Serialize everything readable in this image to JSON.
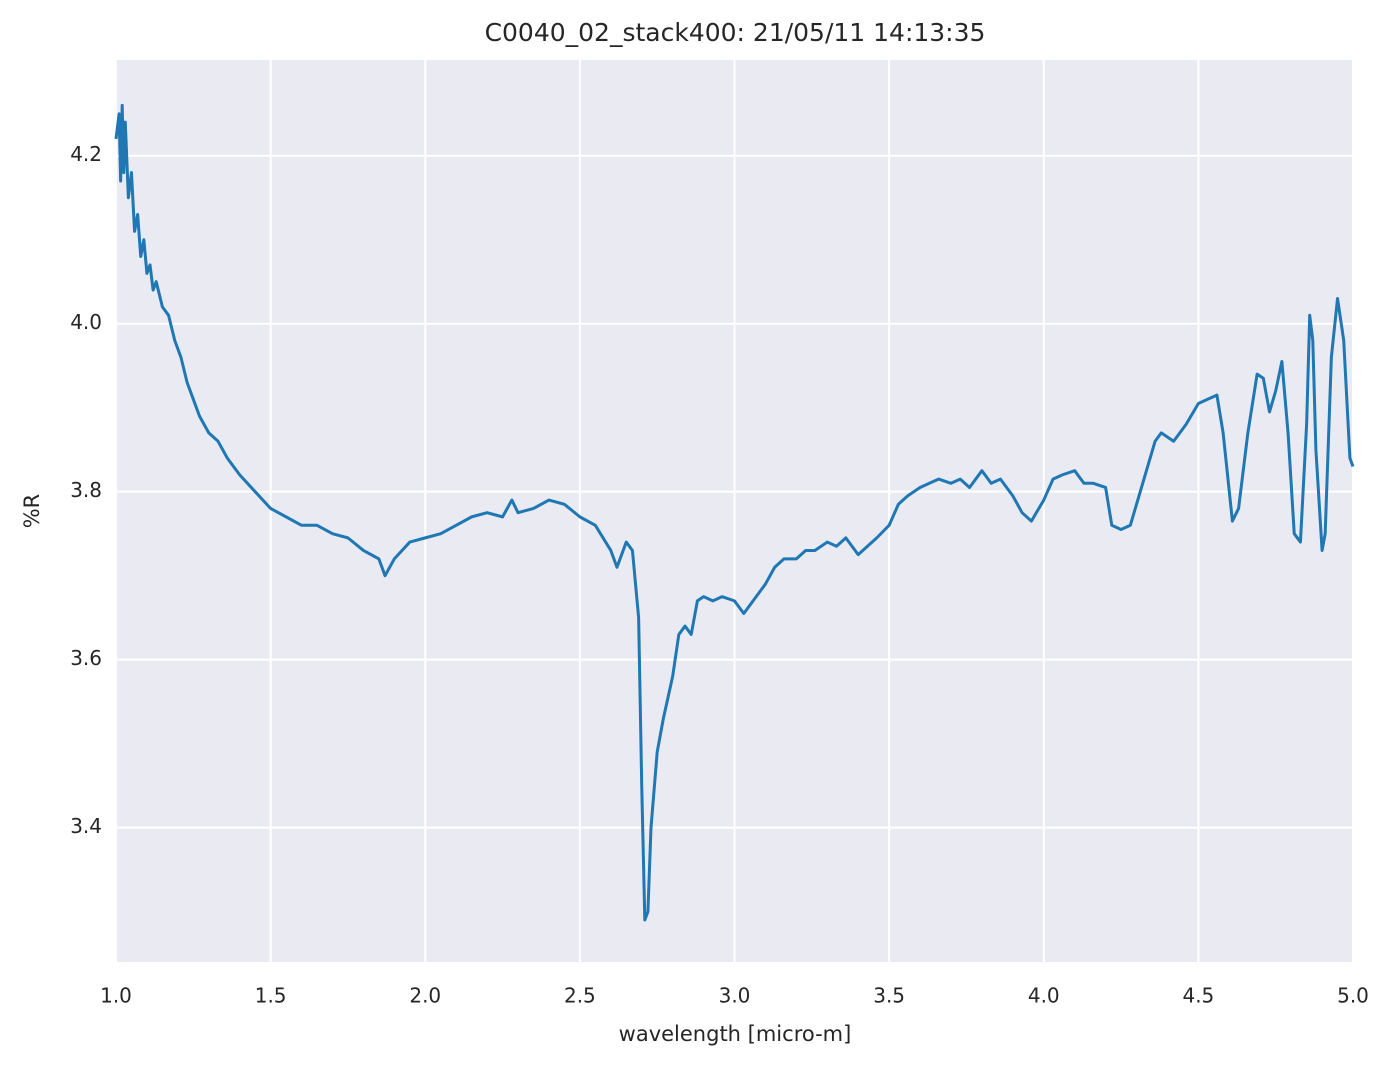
{
  "chart_data": {
    "type": "line",
    "title": "C0040_02_stack400:  21/05/11 14:13:35",
    "x_label": "wavelength [micro-m]",
    "y_label": "%R",
    "color": "#1f77b4",
    "grid": true,
    "xlim": [
      1.0,
      5.0
    ],
    "ylim": [
      3.24,
      4.314
    ],
    "xticks": [
      {
        "value": 1,
        "label": "1.0"
      },
      1.5,
      {
        "value": 2,
        "label": "2.0"
      },
      2.5,
      {
        "value": 3,
        "label": "3.0"
      },
      3.5,
      {
        "value": 4,
        "label": "4.0"
      },
      4.5,
      {
        "value": 5,
        "label": "5.0"
      }
    ],
    "yticks": [
      3.4,
      3.6,
      3.8,
      {
        "value": 4,
        "label": "4.0"
      },
      4.2
    ],
    "x": [
      1.0,
      1.01,
      1.015,
      1.02,
      1.025,
      1.03,
      1.04,
      1.05,
      1.06,
      1.07,
      1.08,
      1.09,
      1.1,
      1.11,
      1.12,
      1.13,
      1.15,
      1.17,
      1.19,
      1.21,
      1.23,
      1.25,
      1.27,
      1.3,
      1.33,
      1.36,
      1.4,
      1.45,
      1.5,
      1.55,
      1.6,
      1.65,
      1.7,
      1.75,
      1.8,
      1.85,
      1.87,
      1.9,
      1.95,
      2.0,
      2.05,
      2.1,
      2.15,
      2.2,
      2.25,
      2.28,
      2.3,
      2.35,
      2.4,
      2.45,
      2.5,
      2.55,
      2.6,
      2.62,
      2.65,
      2.67,
      2.69,
      2.7,
      2.71,
      2.72,
      2.73,
      2.75,
      2.77,
      2.8,
      2.82,
      2.84,
      2.86,
      2.88,
      2.9,
      2.93,
      2.96,
      3.0,
      3.03,
      3.06,
      3.1,
      3.13,
      3.16,
      3.2,
      3.23,
      3.26,
      3.3,
      3.33,
      3.36,
      3.4,
      3.43,
      3.46,
      3.5,
      3.53,
      3.56,
      3.6,
      3.63,
      3.66,
      3.7,
      3.73,
      3.76,
      3.8,
      3.83,
      3.86,
      3.9,
      3.93,
      3.96,
      4.0,
      4.03,
      4.06,
      4.1,
      4.13,
      4.16,
      4.2,
      4.22,
      4.25,
      4.28,
      4.32,
      4.36,
      4.38,
      4.42,
      4.46,
      4.5,
      4.53,
      4.56,
      4.58,
      4.61,
      4.63,
      4.66,
      4.69,
      4.71,
      4.73,
      4.75,
      4.77,
      4.79,
      4.81,
      4.83,
      4.85,
      4.86,
      4.87,
      4.88,
      4.9,
      4.91,
      4.93,
      4.95,
      4.97,
      4.99,
      5.0
    ],
    "values": [
      4.22,
      4.25,
      4.17,
      4.26,
      4.18,
      4.24,
      4.15,
      4.18,
      4.11,
      4.13,
      4.08,
      4.1,
      4.06,
      4.07,
      4.04,
      4.05,
      4.02,
      4.01,
      3.98,
      3.96,
      3.93,
      3.91,
      3.89,
      3.87,
      3.86,
      3.84,
      3.82,
      3.8,
      3.78,
      3.77,
      3.76,
      3.76,
      3.75,
      3.745,
      3.73,
      3.72,
      3.7,
      3.72,
      3.74,
      3.745,
      3.75,
      3.76,
      3.77,
      3.775,
      3.77,
      3.79,
      3.775,
      3.78,
      3.79,
      3.785,
      3.77,
      3.76,
      3.73,
      3.71,
      3.74,
      3.73,
      3.65,
      3.45,
      3.29,
      3.3,
      3.4,
      3.49,
      3.53,
      3.58,
      3.63,
      3.64,
      3.63,
      3.67,
      3.675,
      3.67,
      3.675,
      3.67,
      3.655,
      3.67,
      3.69,
      3.71,
      3.72,
      3.72,
      3.73,
      3.73,
      3.74,
      3.735,
      3.745,
      3.725,
      3.735,
      3.745,
      3.76,
      3.785,
      3.795,
      3.805,
      3.81,
      3.815,
      3.81,
      3.815,
      3.805,
      3.825,
      3.81,
      3.815,
      3.795,
      3.775,
      3.765,
      3.79,
      3.815,
      3.82,
      3.825,
      3.81,
      3.81,
      3.805,
      3.76,
      3.755,
      3.76,
      3.81,
      3.86,
      3.87,
      3.86,
      3.88,
      3.905,
      3.91,
      3.915,
      3.87,
      3.765,
      3.78,
      3.87,
      3.94,
      3.935,
      3.895,
      3.92,
      3.955,
      3.87,
      3.75,
      3.74,
      3.88,
      4.01,
      3.98,
      3.85,
      3.73,
      3.75,
      3.96,
      4.03,
      3.98,
      3.84,
      3.83
    ]
  }
}
